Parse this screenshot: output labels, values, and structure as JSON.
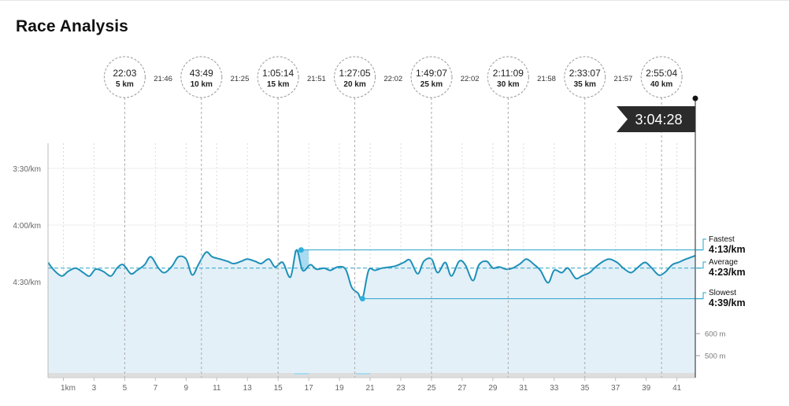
{
  "title": "Race Analysis",
  "finish_time": "3:04:28",
  "checkpoints": [
    {
      "time": "22:03",
      "dist": "5 km",
      "km": 5
    },
    {
      "time": "43:49",
      "dist": "10 km",
      "km": 10
    },
    {
      "time": "1:05:14",
      "dist": "15 km",
      "km": 15
    },
    {
      "time": "1:27:05",
      "dist": "20 km",
      "km": 20
    },
    {
      "time": "1:49:07",
      "dist": "25 km",
      "km": 25
    },
    {
      "time": "2:11:09",
      "dist": "30 km",
      "km": 30
    },
    {
      "time": "2:33:07",
      "dist": "35 km",
      "km": 35
    },
    {
      "time": "2:55:04",
      "dist": "40 km",
      "km": 40
    }
  ],
  "splits": [
    "21:46",
    "21:25",
    "21:51",
    "22:02",
    "22:02",
    "21:58",
    "21:57"
  ],
  "summary": {
    "fastest_label": "Fastest",
    "fastest_value": "4:13/km",
    "fastest_km": 16.5,
    "average_label": "Average",
    "average_value": "4:23/km",
    "slowest_label": "Slowest",
    "slowest_value": "4:39/km",
    "slowest_km": 20.5
  },
  "chart_data": {
    "type": "line",
    "x_unit": "km",
    "y_unit": "pace (min/km)",
    "y_ticks": [
      "3:30/km",
      "4:00/km",
      "4:30/km"
    ],
    "x_ticks": [
      "1km",
      "3",
      "5",
      "7",
      "9",
      "11",
      "13",
      "15",
      "17",
      "19",
      "21",
      "23",
      "25",
      "27",
      "29",
      "31",
      "33",
      "35",
      "37",
      "39",
      "41"
    ],
    "elevation_ticks": [
      "600 m",
      "500 m"
    ],
    "xlim": [
      0,
      42.2
    ],
    "series": [
      {
        "x": [
          0,
          0.4,
          0.9,
          1.3,
          1.8,
          2.3,
          2.7,
          3.1,
          3.6,
          4.1,
          4.5,
          4.9,
          5.4,
          5.8,
          6.3,
          6.7,
          7.2,
          7.6,
          8.1,
          8.5,
          9,
          9.4,
          9.8,
          10.3,
          10.7,
          11.2,
          11.7,
          12.1,
          12.6,
          13,
          13.5,
          13.9,
          14.4,
          14.8,
          15.3,
          15.8,
          16.2,
          16.6,
          17.1,
          17.5,
          18,
          18.4,
          18.9,
          19.4,
          19.8,
          20.2,
          20.5,
          20.9,
          21.3,
          21.8,
          22.3,
          22.7,
          23.2,
          23.6,
          24.1,
          24.5,
          25,
          25.4,
          25.9,
          26.3,
          26.8,
          27.2,
          27.7,
          28.1,
          28.6,
          29,
          29.4,
          29.9,
          30.3,
          30.8,
          31.2,
          31.7,
          32.1,
          32.6,
          33,
          33.5,
          33.9,
          34.4,
          34.8,
          35.3,
          35.7,
          36.2,
          36.6,
          37.1,
          37.5,
          38,
          38.4,
          38.9,
          39.3,
          39.8,
          40.2,
          40.7,
          41.1,
          41.6,
          42.2
        ],
        "y": [
          4.33,
          4.4,
          4.45,
          4.41,
          4.38,
          4.42,
          4.45,
          4.39,
          4.41,
          4.45,
          4.38,
          4.35,
          4.43,
          4.4,
          4.35,
          4.28,
          4.38,
          4.42,
          4.36,
          4.28,
          4.3,
          4.44,
          4.35,
          4.24,
          4.28,
          4.3,
          4.32,
          4.34,
          4.32,
          4.3,
          4.32,
          4.34,
          4.3,
          4.37,
          4.33,
          4.46,
          4.22,
          4.4,
          4.35,
          4.39,
          4.38,
          4.4,
          4.37,
          4.39,
          4.55,
          4.6,
          4.65,
          4.4,
          4.4,
          4.38,
          4.37,
          4.36,
          4.33,
          4.31,
          4.43,
          4.32,
          4.3,
          4.42,
          4.33,
          4.45,
          4.32,
          4.35,
          4.49,
          4.35,
          4.32,
          4.38,
          4.37,
          4.39,
          4.38,
          4.34,
          4.3,
          4.35,
          4.4,
          4.51,
          4.4,
          4.42,
          4.38,
          4.47,
          4.45,
          4.42,
          4.37,
          4.32,
          4.3,
          4.33,
          4.38,
          4.42,
          4.38,
          4.33,
          4.37,
          4.44,
          4.42,
          4.35,
          4.33,
          4.3,
          4.27
        ]
      }
    ],
    "grid": true
  }
}
